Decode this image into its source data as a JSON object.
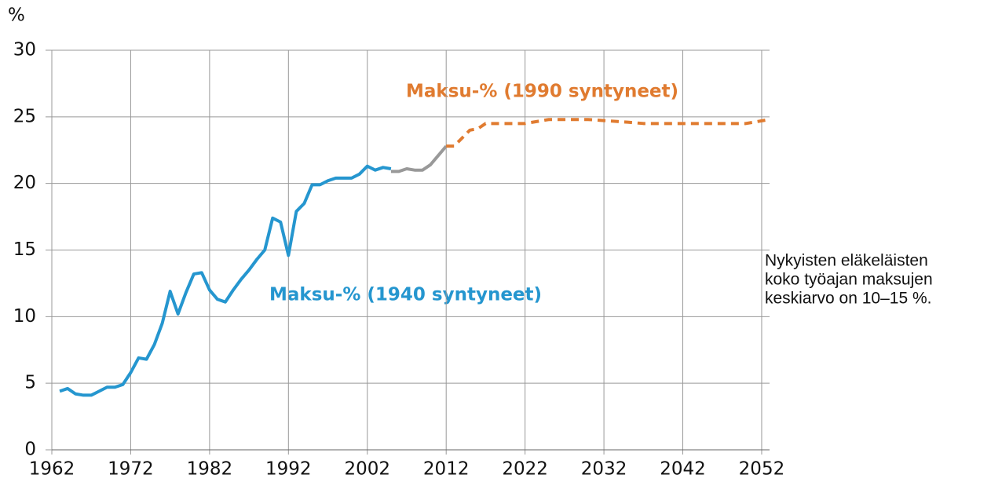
{
  "chart_data": {
    "type": "line",
    "y_label": "%",
    "xlim": [
      1962,
      2053
    ],
    "xticks": [
      1962,
      1972,
      1982,
      1992,
      2002,
      2012,
      2022,
      2032,
      2042,
      2052
    ],
    "ylim": [
      0,
      30
    ],
    "yticks": [
      0,
      5,
      10,
      15,
      20,
      25,
      30
    ],
    "grid": true,
    "series": [
      {
        "name": "Maksu-% (1940 syntyneet)",
        "color": "#2596cf",
        "dashed": false,
        "x": [
          1963,
          1964,
          1965,
          1966,
          1967,
          1968,
          1969,
          1970,
          1971,
          1972,
          1973,
          1974,
          1975,
          1976,
          1977,
          1978,
          1979,
          1980,
          1981,
          1982,
          1983,
          1984,
          1985,
          1986,
          1987,
          1988,
          1989,
          1990,
          1991,
          1992,
          1993,
          1994,
          1995,
          1996,
          1997,
          1998,
          1999,
          2000,
          2001,
          2002,
          2003,
          2004,
          2005
        ],
        "values": [
          4.4,
          4.6,
          4.2,
          4.1,
          4.1,
          4.4,
          4.7,
          4.7,
          4.9,
          5.8,
          6.9,
          6.8,
          7.9,
          9.5,
          11.9,
          10.2,
          11.8,
          13.2,
          13.3,
          12.0,
          11.3,
          11.1,
          12.0,
          12.8,
          13.5,
          14.3,
          15.0,
          17.4,
          17.1,
          14.6,
          17.9,
          18.5,
          19.9,
          19.9,
          20.2,
          20.4,
          20.4,
          20.4,
          20.7,
          21.3,
          21.0,
          21.2,
          21.1
        ]
      },
      {
        "color": "#999999",
        "dashed": false,
        "x": [
          2005,
          2006,
          2007,
          2008,
          2009,
          2010,
          2011,
          2012
        ],
        "values": [
          20.9,
          20.9,
          21.1,
          21.0,
          21.0,
          21.4,
          22.1,
          22.8
        ]
      },
      {
        "name": "Maksu-% (1990 syntyneet)",
        "color": "#e07b30",
        "dashed": true,
        "x": [
          2012,
          2013,
          2014,
          2015,
          2016,
          2017,
          2020,
          2022,
          2025,
          2030,
          2035,
          2037,
          2045,
          2050,
          2053
        ],
        "values": [
          22.8,
          22.8,
          23.4,
          24.0,
          24.1,
          24.5,
          24.5,
          24.5,
          24.8,
          24.8,
          24.6,
          24.5,
          24.5,
          24.5,
          24.8
        ]
      }
    ],
    "annotation_lines": [
      "Nykyisten eläkeläisten",
      "koko työajan maksujen",
      "keskiarvo on 10–15 %."
    ]
  }
}
